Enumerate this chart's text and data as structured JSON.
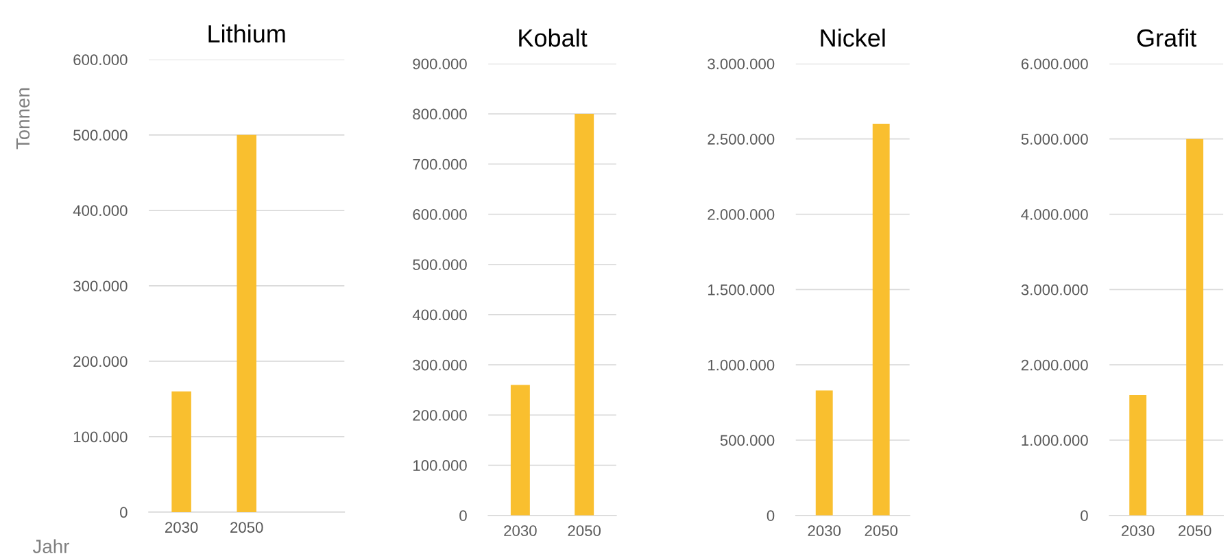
{
  "chart_data": [
    {
      "type": "bar",
      "title": "Lithium",
      "ylabel": "Tonnen",
      "xlabel": "Jahr",
      "categories": [
        "2030",
        "2050",
        null
      ],
      "values": [
        160000,
        500000,
        null
      ],
      "color": "#f9bf2f",
      "ylim": [
        0,
        600000
      ],
      "yticks": [
        {
          "value": 0,
          "label": "0"
        },
        {
          "value": 100000,
          "label": "100.000"
        },
        {
          "value": 200000,
          "label": "200.000"
        },
        {
          "value": 300000,
          "label": "300.000"
        },
        {
          "value": 400000,
          "label": "400.000"
        },
        {
          "value": 500000,
          "label": "500.000"
        },
        {
          "value": 600000,
          "label": "600.000"
        }
      ],
      "grid": "y"
    },
    {
      "type": "bar",
      "title": "Kobalt",
      "categories": [
        "2030",
        "2050"
      ],
      "values": [
        260000,
        800000
      ],
      "color": "#f9bf2f",
      "ylim": [
        0,
        900000
      ],
      "yticks": [
        {
          "value": 0,
          "label": "0"
        },
        {
          "value": 100000,
          "label": "100.000"
        },
        {
          "value": 200000,
          "label": "200.000"
        },
        {
          "value": 300000,
          "label": "300.000"
        },
        {
          "value": 400000,
          "label": "400.000"
        },
        {
          "value": 500000,
          "label": "500.000"
        },
        {
          "value": 600000,
          "label": "600.000"
        },
        {
          "value": 700000,
          "label": "700.000"
        },
        {
          "value": 800000,
          "label": "800.000"
        },
        {
          "value": 900000,
          "label": "900.000"
        }
      ],
      "grid": "y"
    },
    {
      "type": "bar",
      "title": "Nickel",
      "categories": [
        "2030",
        "2050"
      ],
      "values": [
        830000,
        2600000
      ],
      "color": "#f9bf2f",
      "ylim": [
        0,
        3000000
      ],
      "yticks": [
        {
          "value": 0,
          "label": "0"
        },
        {
          "value": 500000,
          "label": "500.000"
        },
        {
          "value": 1000000,
          "label": "1.000.000"
        },
        {
          "value": 1500000,
          "label": "1.500.000"
        },
        {
          "value": 2000000,
          "label": "2.000.000"
        },
        {
          "value": 2500000,
          "label": "2.500.000"
        },
        {
          "value": 3000000,
          "label": "3.000.000"
        }
      ],
      "grid": "y"
    },
    {
      "type": "bar",
      "title": "Grafit",
      "categories": [
        "2030",
        "2050"
      ],
      "values": [
        1600000,
        5000000
      ],
      "color": "#f9bf2f",
      "ylim": [
        0,
        6000000
      ],
      "yticks": [
        {
          "value": 0,
          "label": "0"
        },
        {
          "value": 1000000,
          "label": "1.000.000"
        },
        {
          "value": 2000000,
          "label": "2.000.000"
        },
        {
          "value": 3000000,
          "label": "3.000.000"
        },
        {
          "value": 4000000,
          "label": "4.000.000"
        },
        {
          "value": 5000000,
          "label": "5.000.000"
        },
        {
          "value": 6000000,
          "label": "6.000.000"
        }
      ],
      "grid": "y"
    }
  ]
}
